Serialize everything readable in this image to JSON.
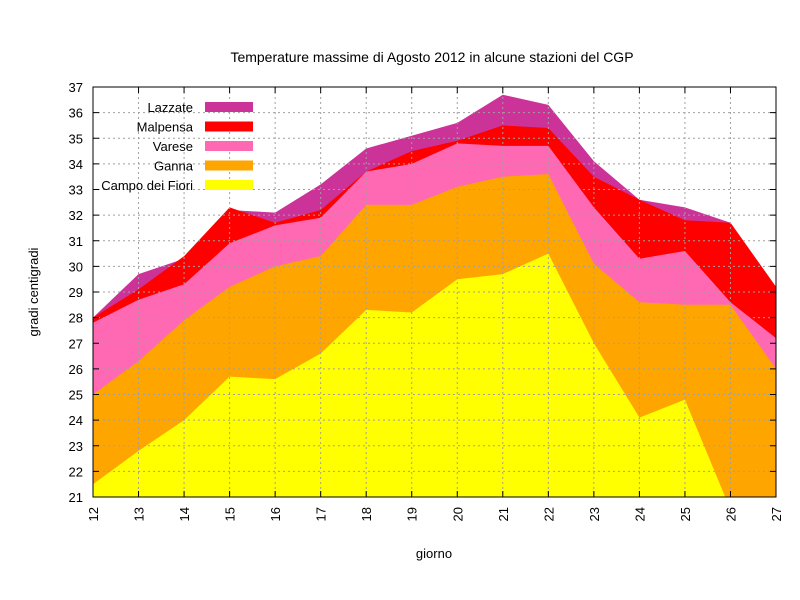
{
  "chart_data": {
    "type": "area",
    "title": "Temperature massime di Agosto 2012 in alcune stazioni del CGP",
    "xlabel": "giorno",
    "ylabel": "gradi centigradi",
    "x": [
      12,
      13,
      14,
      15,
      16,
      17,
      18,
      19,
      20,
      21,
      22,
      23,
      24,
      25,
      26,
      27
    ],
    "xlim": [
      12,
      27
    ],
    "ylim": [
      21,
      37
    ],
    "yticks": [
      21,
      22,
      23,
      24,
      25,
      26,
      27,
      28,
      29,
      30,
      31,
      32,
      33,
      34,
      35,
      36,
      37
    ],
    "grid": true,
    "legend_position": "top-left",
    "series": [
      {
        "name": "Lazzate",
        "color": "#cc3399",
        "values": [
          28.0,
          29.7,
          30.3,
          32.2,
          32.1,
          33.2,
          34.6,
          35.1,
          35.6,
          36.7,
          36.3,
          34.1,
          32.6,
          32.3,
          31.7,
          29.2
        ]
      },
      {
        "name": "Malpensa",
        "color": "#ff0000",
        "values": [
          28.0,
          29.1,
          30.4,
          32.3,
          31.7,
          32.2,
          33.7,
          34.5,
          34.9,
          35.5,
          35.4,
          33.5,
          32.6,
          31.8,
          31.7,
          29.2
        ]
      },
      {
        "name": "Varese",
        "color": "#ff69b4",
        "values": [
          27.8,
          28.7,
          29.3,
          30.9,
          31.6,
          31.9,
          33.7,
          34.0,
          34.8,
          34.7,
          34.7,
          32.3,
          30.3,
          30.6,
          28.6,
          27.2
        ]
      },
      {
        "name": "Ganna",
        "color": "#ffa500",
        "values": [
          25.0,
          26.3,
          27.9,
          29.2,
          30.0,
          30.4,
          32.4,
          32.4,
          33.1,
          33.5,
          33.6,
          30.1,
          28.6,
          28.5,
          28.5,
          26.0
        ]
      },
      {
        "name": "Campo dei Fiori",
        "color": "#ffff00",
        "values": [
          21.5,
          22.8,
          24.0,
          25.7,
          25.6,
          26.6,
          28.3,
          28.2,
          29.5,
          29.7,
          30.5,
          27.0,
          24.1,
          24.8,
          20.5,
          20.5
        ]
      }
    ]
  }
}
